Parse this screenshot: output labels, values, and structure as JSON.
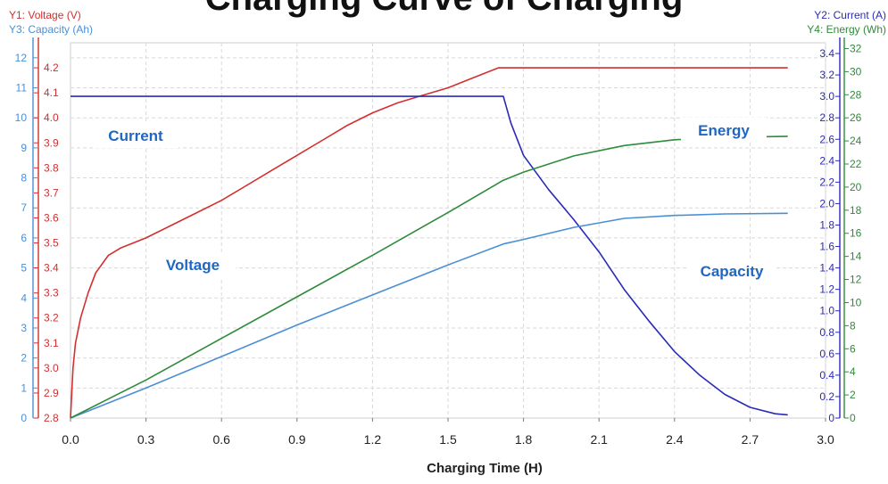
{
  "chart_data": {
    "type": "line",
    "title": "Charging Curve of Charging",
    "xlabel": "Charging Time (H)",
    "xlim": [
      0,
      3.0
    ],
    "x_ticks": [
      "0.0",
      "0.3",
      "0.6",
      "0.9",
      "1.2",
      "1.5",
      "1.8",
      "2.1",
      "2.4",
      "2.7",
      "3.0"
    ],
    "grid": true,
    "axes": {
      "y1": {
        "label": "Y1: Voltage (V)",
        "range": [
          2.8,
          4.3
        ],
        "ticks": [
          "2.8",
          "2.9",
          "3.0",
          "3.1",
          "3.2",
          "3.3",
          "3.4",
          "3.5",
          "3.6",
          "3.7",
          "3.8",
          "3.9",
          "4.0",
          "4.1",
          "4.2"
        ],
        "color": "#d32f2f"
      },
      "y2": {
        "label": "Y2: Current (A)",
        "range": [
          0,
          3.5
        ],
        "ticks": [
          "0",
          "0.2",
          "0.4",
          "0.6",
          "0.8",
          "1.0",
          "1.2",
          "1.4",
          "1.6",
          "1.8",
          "2.0",
          "2.2",
          "2.4",
          "2.6",
          "2.8",
          "3.0",
          "3.2",
          "3.4"
        ],
        "color": "#2a2ab8"
      },
      "y3": {
        "label": "Y3: Capacity (Ah)",
        "range": [
          0,
          12.5
        ],
        "ticks": [
          "0",
          "1",
          "2",
          "3",
          "4",
          "5",
          "6",
          "7",
          "8",
          "9",
          "10",
          "11",
          "12"
        ],
        "color": "#4a8fd4"
      },
      "y4": {
        "label": "Y4: Energy (Wh)",
        "range": [
          0,
          32.5
        ],
        "ticks": [
          "0",
          "2",
          "4",
          "6",
          "8",
          "10",
          "12",
          "14",
          "16",
          "18",
          "20",
          "22",
          "24",
          "26",
          "28",
          "30",
          "32"
        ],
        "color": "#2e8b3a"
      }
    },
    "series": [
      {
        "name": "Voltage",
        "axis": "y1",
        "color": "#d32f2f",
        "x": [
          0,
          0.005,
          0.01,
          0.02,
          0.04,
          0.07,
          0.1,
          0.15,
          0.2,
          0.3,
          0.4,
          0.5,
          0.6,
          0.7,
          0.8,
          0.9,
          1.0,
          1.1,
          1.2,
          1.3,
          1.4,
          1.5,
          1.6,
          1.7,
          1.72,
          1.75,
          2.0,
          2.5,
          2.85
        ],
        "y": [
          2.8,
          2.9,
          3.0,
          3.1,
          3.2,
          3.3,
          3.38,
          3.45,
          3.48,
          3.52,
          3.57,
          3.62,
          3.67,
          3.73,
          3.79,
          3.85,
          3.91,
          3.97,
          4.02,
          4.06,
          4.09,
          4.12,
          4.16,
          4.2,
          4.2,
          4.2,
          4.2,
          4.2,
          4.2
        ]
      },
      {
        "name": "Current",
        "axis": "y2",
        "color": "#2a2ab8",
        "x": [
          0,
          0.01,
          1.72,
          1.75,
          1.8,
          1.9,
          2.0,
          2.1,
          2.2,
          2.3,
          2.4,
          2.5,
          2.6,
          2.7,
          2.8,
          2.85
        ],
        "y": [
          3.0,
          3.0,
          3.0,
          2.75,
          2.45,
          2.13,
          1.85,
          1.55,
          1.2,
          0.9,
          0.62,
          0.4,
          0.22,
          0.1,
          0.04,
          0.03
        ]
      },
      {
        "name": "Capacity",
        "axis": "y3",
        "color": "#4a8fd4",
        "x": [
          0,
          0.3,
          0.6,
          0.9,
          1.2,
          1.5,
          1.72,
          1.8,
          2.0,
          2.2,
          2.4,
          2.6,
          2.85
        ],
        "y": [
          0,
          1.0,
          2.05,
          3.1,
          4.1,
          5.1,
          5.8,
          5.95,
          6.35,
          6.65,
          6.75,
          6.8,
          6.82
        ]
      },
      {
        "name": "Energy",
        "axis": "y4",
        "color": "#2e8b3a",
        "x": [
          0,
          0.3,
          0.6,
          0.9,
          1.2,
          1.5,
          1.72,
          1.8,
          2.0,
          2.2,
          2.4,
          2.6,
          2.85
        ],
        "y": [
          0,
          3.3,
          6.9,
          10.5,
          14.1,
          17.8,
          20.6,
          21.3,
          22.7,
          23.6,
          24.1,
          24.3,
          24.4
        ]
      }
    ],
    "annotations": [
      {
        "text": "Current",
        "color": "#1f67c4"
      },
      {
        "text": "Voltage",
        "color": "#1f67c4"
      },
      {
        "text": "Energy",
        "color": "#1f67c4"
      },
      {
        "text": "Capacity",
        "color": "#1f67c4"
      }
    ]
  }
}
